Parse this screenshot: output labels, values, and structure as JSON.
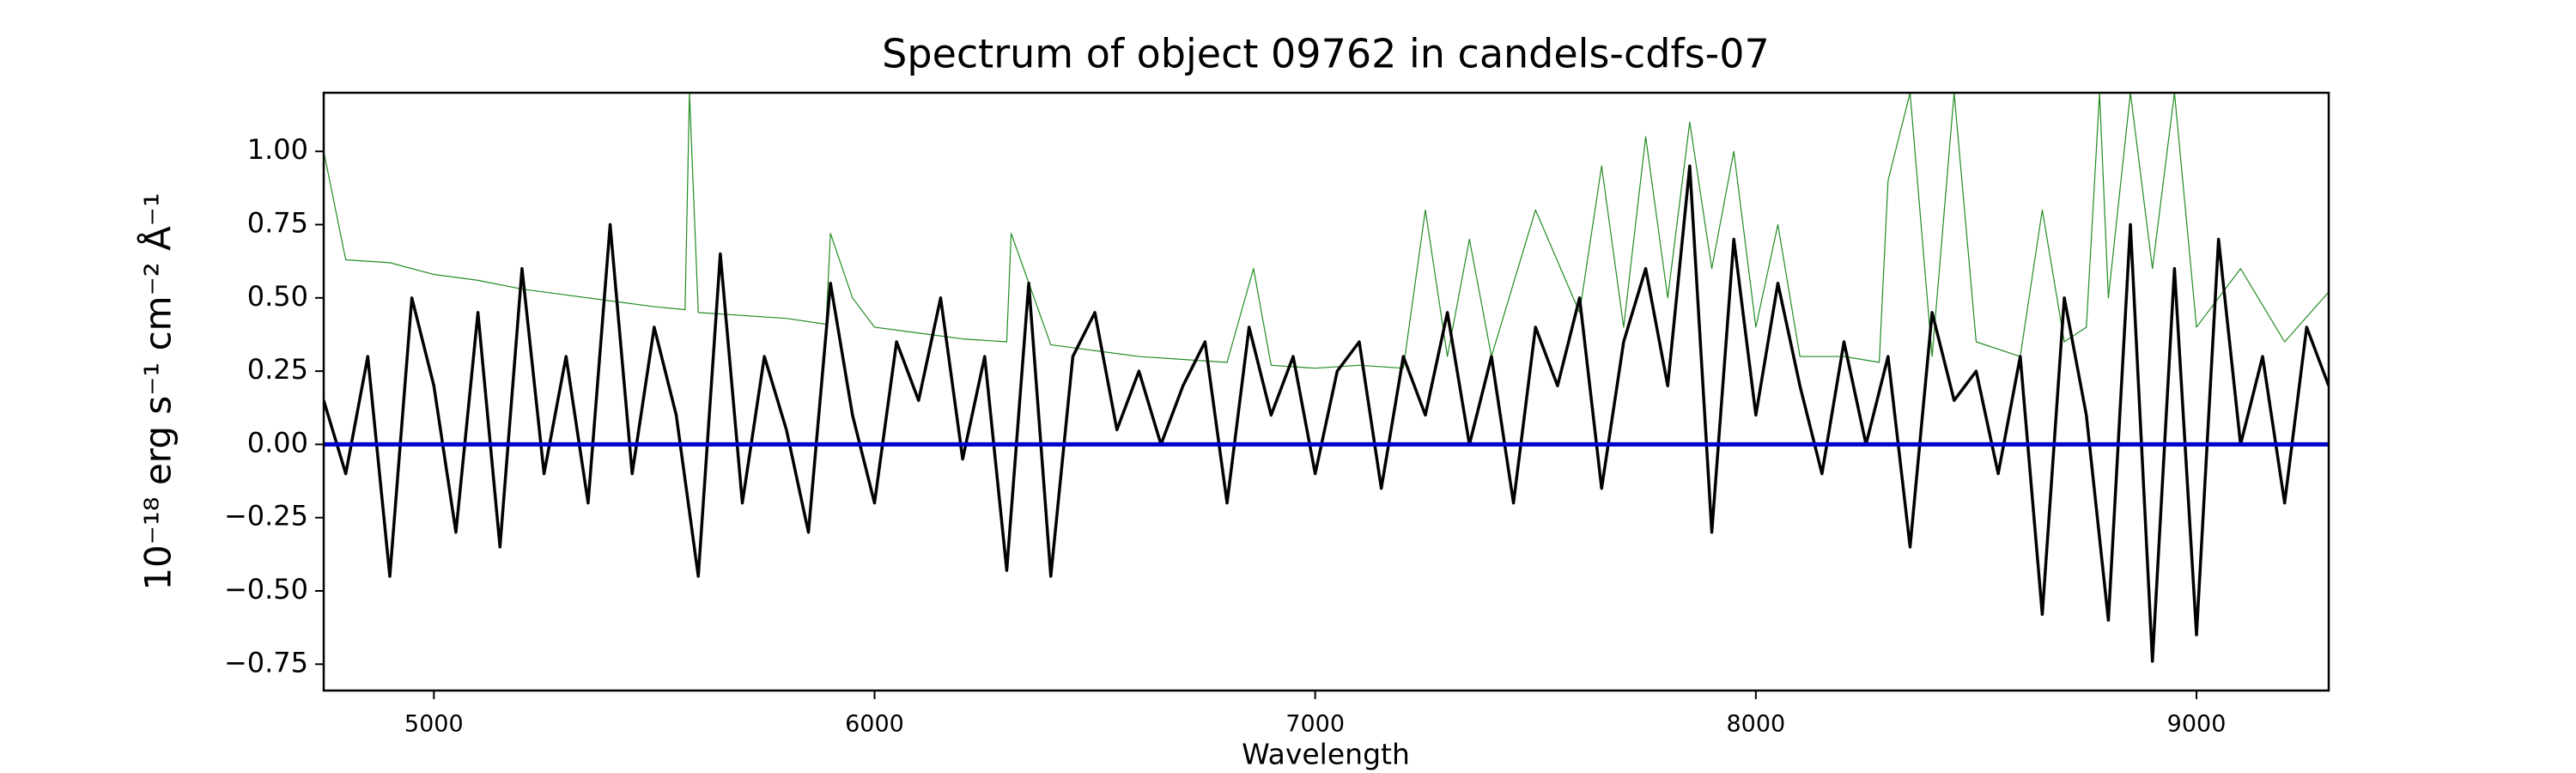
{
  "chart_data": {
    "type": "line",
    "title": "Spectrum of object 09762 in candels-cdfs-07",
    "xlabel": "Wavelength",
    "ylabel": "10⁻¹⁸ erg s⁻¹ cm⁻² Å⁻¹",
    "xlim": [
      4750,
      9300
    ],
    "ylim": [
      -0.84,
      1.2
    ],
    "xticks": [
      5000,
      6000,
      7000,
      8000,
      9000
    ],
    "yticks": [
      {
        "value": -0.75,
        "label": "−0.75"
      },
      {
        "value": -0.5,
        "label": "−0.50"
      },
      {
        "value": -0.25,
        "label": "−0.25"
      },
      {
        "value": 0,
        "label": "0.00"
      },
      {
        "value": 0.25,
        "label": "0.25"
      },
      {
        "value": 0.5,
        "label": "0.50"
      },
      {
        "value": 0.75,
        "label": "0.75"
      },
      {
        "value": 1,
        "label": "1.00"
      }
    ],
    "grid": false,
    "series": [
      {
        "color": "#228b22",
        "width": 1.2,
        "x": [
          4750,
          4800,
          4900,
          5000,
          5100,
          5200,
          5300,
          5400,
          5500,
          5570,
          5580,
          5600,
          5700,
          5800,
          5890,
          5900,
          5950,
          6000,
          6100,
          6200,
          6300,
          6310,
          6400,
          6500,
          6600,
          6700,
          6800,
          6860,
          6900,
          7000,
          7100,
          7200,
          7250,
          7300,
          7350,
          7400,
          7500,
          7600,
          7650,
          7700,
          7750,
          7800,
          7850,
          7900,
          7950,
          8000,
          8050,
          8100,
          8200,
          8280,
          8300,
          8350,
          8400,
          8450,
          8500,
          8600,
          8650,
          8700,
          8750,
          8780,
          8800,
          8850,
          8900,
          8950,
          9000,
          9100,
          9200,
          9300
        ],
        "values": [
          1.0,
          0.63,
          0.62,
          0.58,
          0.56,
          0.53,
          0.51,
          0.49,
          0.47,
          0.46,
          1.2,
          0.45,
          0.44,
          0.43,
          0.41,
          0.72,
          0.5,
          0.4,
          0.38,
          0.36,
          0.35,
          0.72,
          0.34,
          0.32,
          0.3,
          0.29,
          0.28,
          0.6,
          0.27,
          0.26,
          0.27,
          0.26,
          0.8,
          0.3,
          0.7,
          0.3,
          0.8,
          0.45,
          0.95,
          0.4,
          1.05,
          0.5,
          1.1,
          0.6,
          1.0,
          0.4,
          0.75,
          0.3,
          0.3,
          0.28,
          0.9,
          1.2,
          0.3,
          1.2,
          0.35,
          0.3,
          0.8,
          0.35,
          0.4,
          1.2,
          0.5,
          1.2,
          0.6,
          1.2,
          0.4,
          0.6,
          0.35,
          0.52
        ]
      },
      {
        "color": "#000000",
        "width": 3.5,
        "x": [
          4750,
          4800,
          4850,
          4900,
          4950,
          5000,
          5050,
          5100,
          5150,
          5200,
          5250,
          5300,
          5350,
          5400,
          5450,
          5500,
          5550,
          5600,
          5650,
          5700,
          5750,
          5800,
          5850,
          5900,
          5950,
          6000,
          6050,
          6100,
          6150,
          6200,
          6250,
          6300,
          6350,
          6400,
          6450,
          6500,
          6550,
          6600,
          6650,
          6700,
          6750,
          6800,
          6850,
          6900,
          6950,
          7000,
          7050,
          7100,
          7150,
          7200,
          7250,
          7300,
          7350,
          7400,
          7450,
          7500,
          7550,
          7600,
          7650,
          7700,
          7750,
          7800,
          7850,
          7900,
          7950,
          8000,
          8050,
          8100,
          8150,
          8200,
          8250,
          8300,
          8350,
          8400,
          8450,
          8500,
          8550,
          8600,
          8650,
          8700,
          8750,
          8800,
          8850,
          8900,
          8950,
          9000,
          9050,
          9100,
          9150,
          9200,
          9250,
          9300
        ],
        "values": [
          0.15,
          -0.1,
          0.3,
          -0.45,
          0.5,
          0.2,
          -0.3,
          0.45,
          -0.35,
          0.6,
          -0.1,
          0.3,
          -0.2,
          0.75,
          -0.1,
          0.4,
          0.1,
          -0.45,
          0.65,
          -0.2,
          0.3,
          0.05,
          -0.3,
          0.55,
          0.1,
          -0.2,
          0.35,
          0.15,
          0.5,
          -0.05,
          0.3,
          -0.43,
          0.55,
          -0.45,
          0.3,
          0.45,
          0.05,
          0.25,
          0.0,
          0.2,
          0.35,
          -0.2,
          0.4,
          0.1,
          0.3,
          -0.1,
          0.25,
          0.35,
          -0.15,
          0.3,
          0.1,
          0.45,
          0.0,
          0.3,
          -0.2,
          0.4,
          0.2,
          0.5,
          -0.15,
          0.35,
          0.6,
          0.2,
          0.95,
          -0.3,
          0.7,
          0.1,
          0.55,
          0.2,
          -0.1,
          0.35,
          0.0,
          0.3,
          -0.35,
          0.45,
          0.15,
          0.25,
          -0.1,
          0.3,
          -0.58,
          0.5,
          0.1,
          -0.6,
          0.75,
          -0.74,
          0.6,
          -0.65,
          0.7,
          0.0,
          0.3,
          -0.2,
          0.4,
          0.2
        ]
      },
      {
        "color": "#0000cc",
        "width": 5,
        "x": [
          4750,
          9300
        ],
        "values": [
          0,
          0
        ]
      }
    ]
  }
}
